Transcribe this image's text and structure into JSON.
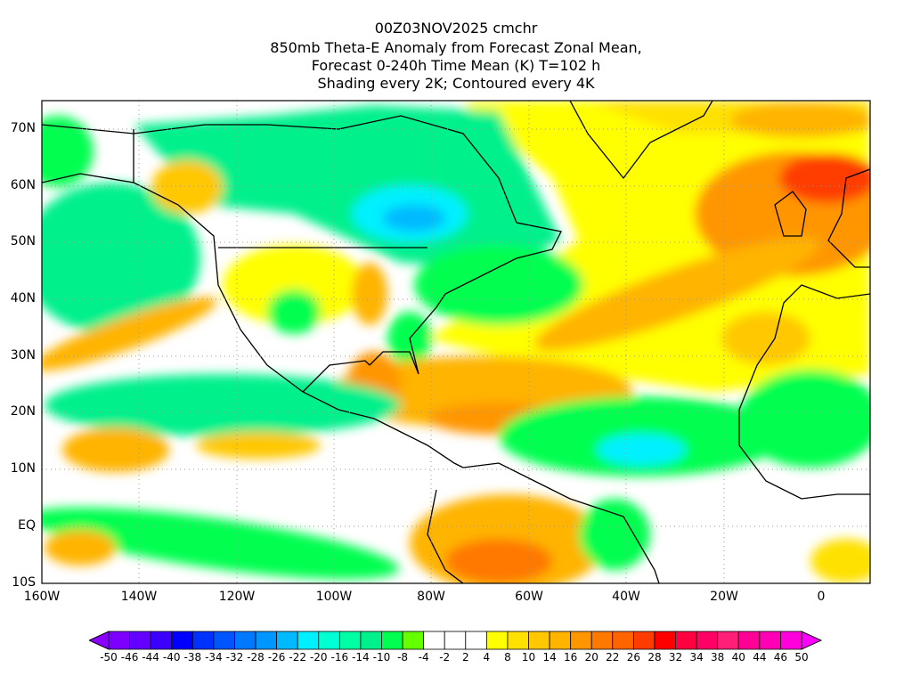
{
  "title": {
    "line1": "00Z03NOV2025 cmchr",
    "line2": "850mb Theta-E Anomaly from Forecast Zonal Mean,",
    "line3": "Forecast 0-240h Time Mean (K) T=102 h",
    "line4": "Shading every 2K; Contoured every 4K"
  },
  "map": {
    "lat_labels": [
      "70N",
      "60N",
      "50N",
      "40N",
      "30N",
      "20N",
      "10N",
      "EQ",
      "10S"
    ],
    "lon_labels": [
      "160W",
      "140W",
      "120W",
      "100W",
      "80W",
      "60W",
      "40W",
      "20W",
      "0"
    ]
  },
  "colorbar": {
    "labels": [
      "-50",
      "-46",
      "-44",
      "-40",
      "-38",
      "-34",
      "-32",
      "-28",
      "-26",
      "-22",
      "-20",
      "-16",
      "-14",
      "-10",
      "-8",
      "-4",
      "-2",
      "2",
      "4",
      "8",
      "10",
      "14",
      "16",
      "20",
      "22",
      "26",
      "28",
      "32",
      "34",
      "38",
      "40",
      "44",
      "46",
      "50"
    ],
    "under_color": "#8c00ff",
    "over_color": "#ff00ff",
    "colors": [
      "#7d00ff",
      "#6400ff",
      "#3c00ff",
      "#0000ff",
      "#0032ff",
      "#0055ff",
      "#0078ff",
      "#0096ff",
      "#00b9ff",
      "#00f0ff",
      "#00ffd2",
      "#00ffa5",
      "#00f08c",
      "#00ff50",
      "#64ff00",
      "#ffffff",
      "#ffffff",
      "#ffffff",
      "#ffff00",
      "#ffe100",
      "#ffc800",
      "#ffb400",
      "#ff9600",
      "#ff7800",
      "#ff6400",
      "#ff3c00",
      "#ff0000",
      "#ff0040",
      "#ff0064",
      "#ff1e78",
      "#ff0096",
      "#ff00b4",
      "#ff00dc"
    ]
  }
}
